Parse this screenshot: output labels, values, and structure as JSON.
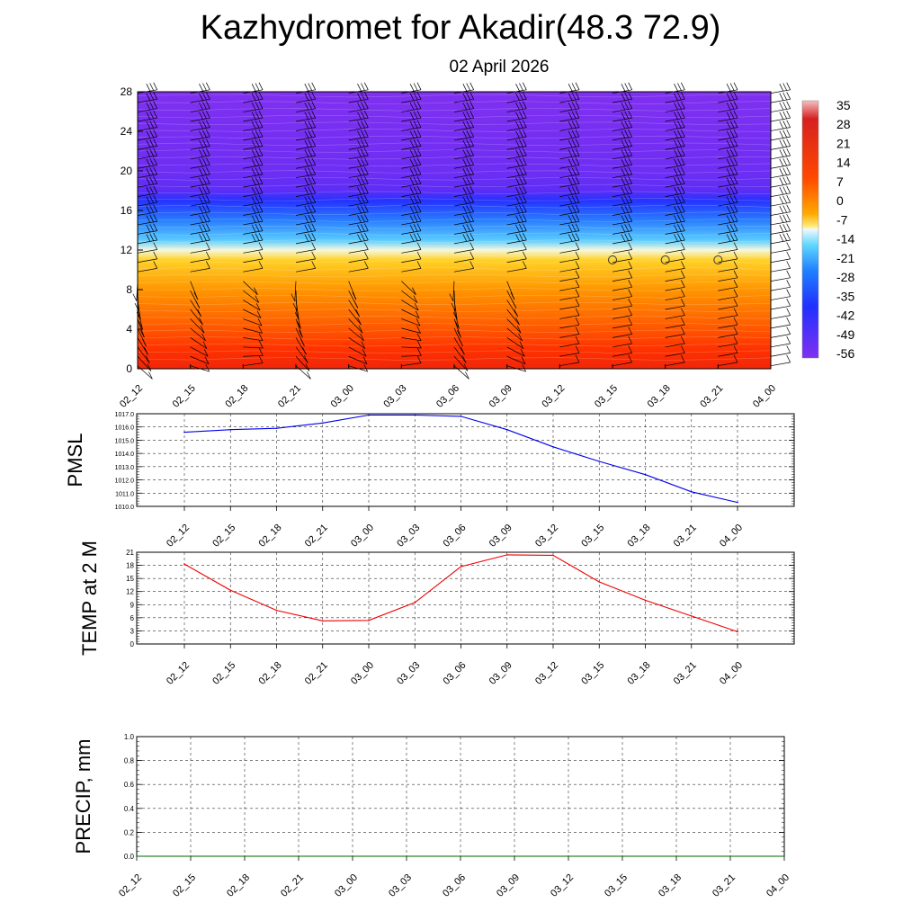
{
  "title": "Kazhydromet for Akadir(48.3 72.9)",
  "subtitle": "02 April 2026",
  "colors": {
    "pmsl_line": "#0000ee",
    "temp_line": "#ee0000",
    "precip_line": "#006400",
    "grid": "#333333",
    "barb": "#000000"
  },
  "chart_data": [
    {
      "id": "cross_section",
      "type": "heatmap",
      "title": "",
      "xlabel": "",
      "ylabel": "",
      "x_tick_labels": [
        "02_12",
        "02_15",
        "02_18",
        "02_21",
        "03_00",
        "03_03",
        "03_06",
        "03_09",
        "03_12",
        "03_15",
        "03_18",
        "03_21",
        "04_00"
      ],
      "y_ticks": [
        0,
        4,
        8,
        12,
        16,
        20,
        24,
        28
      ],
      "ylim": [
        0,
        28
      ],
      "colorbar": {
        "labels": [
          "35",
          "28",
          "21",
          "14",
          "7",
          "0",
          "-7",
          "-14",
          "-21",
          "-28",
          "-35",
          "-42",
          "-49",
          "-56"
        ],
        "range": [
          -60,
          38
        ]
      },
      "temperature_profile": [
        {
          "level": 0,
          "value": 17
        },
        {
          "level": 2,
          "value": 15
        },
        {
          "level": 4,
          "value": 12
        },
        {
          "level": 8,
          "value": 6
        },
        {
          "level": 11,
          "value": -3
        },
        {
          "level": 12,
          "value": -12
        },
        {
          "level": 13,
          "value": -22
        },
        {
          "level": 15,
          "value": -35
        },
        {
          "level": 17,
          "value": -48
        },
        {
          "level": 18,
          "value": -56
        },
        {
          "level": 20,
          "value": -58
        },
        {
          "level": 28,
          "value": -60
        }
      ],
      "calm_markers": [
        {
          "x_label": "03_15",
          "level": 11
        },
        {
          "x_label": "03_18",
          "level": 11
        },
        {
          "x_label": "03_21",
          "level": 11
        }
      ]
    },
    {
      "id": "pmsl",
      "type": "line",
      "ylabel": "PMSL",
      "ylim": [
        1010.0,
        1017.0
      ],
      "y_tick_labels": [
        "1017.0",
        "1016.0",
        "1015.0",
        "1014.0",
        "1013.0",
        "1012.0",
        "1011.0",
        "1010.0"
      ],
      "categories": [
        "02_12",
        "02_15",
        "02_18",
        "02_21",
        "03_00",
        "03_03",
        "03_06",
        "03_09",
        "03_12",
        "03_15",
        "03_18",
        "03_21",
        "04_00"
      ],
      "series": [
        {
          "name": "PMSL",
          "values": [
            1015.6,
            1015.8,
            1015.9,
            1016.3,
            1016.9,
            1016.9,
            1016.8,
            1015.8,
            1014.5,
            1013.4,
            1012.4,
            1011.1,
            1010.3
          ]
        }
      ]
    },
    {
      "id": "temp2m",
      "type": "line",
      "ylabel": "TEMP at 2 M",
      "ylim": [
        0,
        21
      ],
      "y_tick_labels": [
        "21",
        "18",
        "15",
        "12",
        "9",
        "6",
        "3",
        "0"
      ],
      "categories": [
        "02_12",
        "02_15",
        "02_18",
        "02_21",
        "03_00",
        "03_03",
        "03_06",
        "03_09",
        "03_12",
        "03_15",
        "03_18",
        "03_21",
        "04_00"
      ],
      "series": [
        {
          "name": "TEMP",
          "values": [
            18.3,
            12.3,
            7.7,
            5.3,
            5.4,
            9.5,
            17.7,
            20.4,
            20.3,
            14.2,
            10.0,
            6.4,
            2.8
          ]
        }
      ]
    },
    {
      "id": "precip",
      "type": "line",
      "ylabel": "PRECIP, mm",
      "ylim": [
        0,
        1.0
      ],
      "y_tick_labels": [
        "1.0",
        "0.8",
        "0.6",
        "0.4",
        "0.2",
        "0.0"
      ],
      "categories": [
        "02_12",
        "02_15",
        "02_18",
        "02_21",
        "03_00",
        "03_03",
        "03_06",
        "03_09",
        "03_12",
        "03_15",
        "03_18",
        "03_21",
        "04_00"
      ],
      "series": [
        {
          "name": "PRECIP",
          "values": [
            0,
            0,
            0,
            0,
            0,
            0,
            0,
            0,
            0,
            0,
            0,
            0,
            0
          ]
        }
      ]
    }
  ]
}
